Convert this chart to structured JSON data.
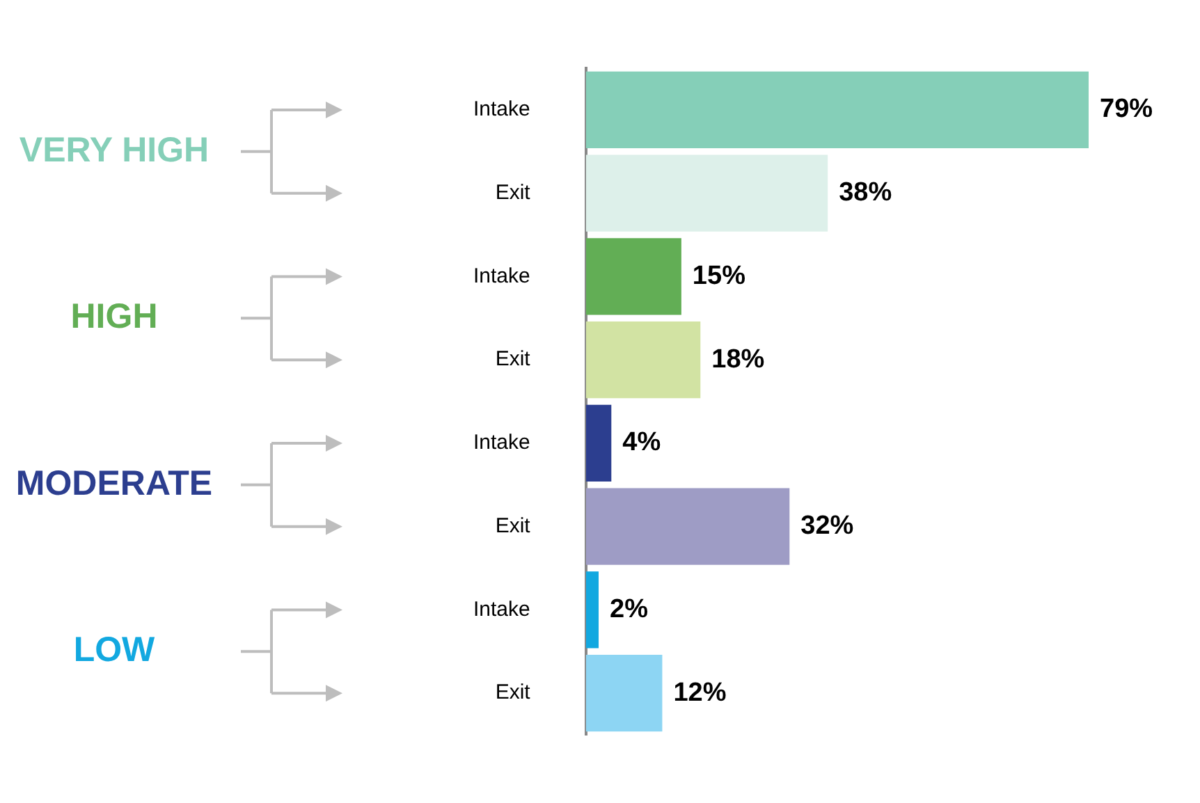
{
  "chart_data": {
    "type": "bar",
    "orientation": "horizontal",
    "categories": [
      "Intake",
      "Exit",
      "Intake",
      "Exit",
      "Intake",
      "Exit",
      "Intake",
      "Exit"
    ],
    "values": [
      79,
      38,
      15,
      18,
      4,
      32,
      2,
      12
    ],
    "colors": [
      "#85cfb8",
      "#ddf0ea",
      "#62ae55",
      "#d2e3a3",
      "#2c3e8f",
      "#9e9cc5",
      "#12a8e0",
      "#8dd5f3"
    ],
    "value_labels": [
      "79%",
      "38%",
      "15%",
      "18%",
      "4%",
      "32%",
      "2%",
      "12%"
    ],
    "annotations": [
      "VERY HIGH",
      "HIGH",
      "MODERATE",
      "LOW"
    ],
    "tick_labels": "y",
    "grid": false,
    "legend": false
  }
}
